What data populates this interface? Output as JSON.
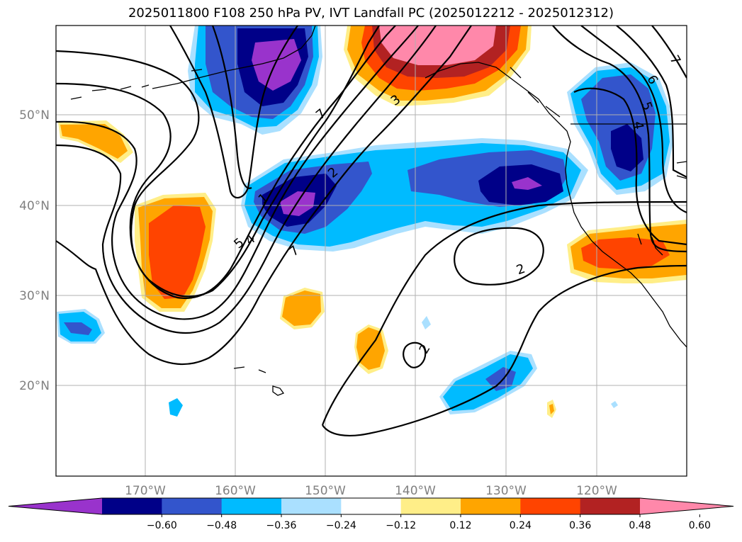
{
  "title": "2025011800 F108 250 hPa PV, IVT Landfall PC (2025012212 - 2025012312)",
  "axes": {
    "lon_ticks": [
      "170°W",
      "160°W",
      "150°W",
      "140°W",
      "130°W",
      "120°W"
    ],
    "lat_ticks": [
      "50°N",
      "40°N",
      "30°N",
      "20°N"
    ]
  },
  "colorbar": {
    "colors": [
      "#9933cc",
      "#000088",
      "#3355cc",
      "#00bbff",
      "#aae0ff",
      "#ffffff",
      "#ffee88",
      "#ffa500",
      "#ff4400",
      "#b22222",
      "#ff88aa"
    ],
    "labels": [
      "−0.60",
      "−0.48",
      "−0.36",
      "−0.24",
      "−0.12",
      "0.12",
      "0.24",
      "0.36",
      "0.48",
      "0.60"
    ]
  },
  "contour_labels": [
    "7",
    "3",
    "2",
    "7",
    "5",
    "4",
    "1",
    "2",
    "2",
    "6",
    "5",
    "4",
    "7"
  ],
  "layers": {
    "fill_field": "IVT Landfall PC",
    "line_field": "250 hPa PV"
  }
}
